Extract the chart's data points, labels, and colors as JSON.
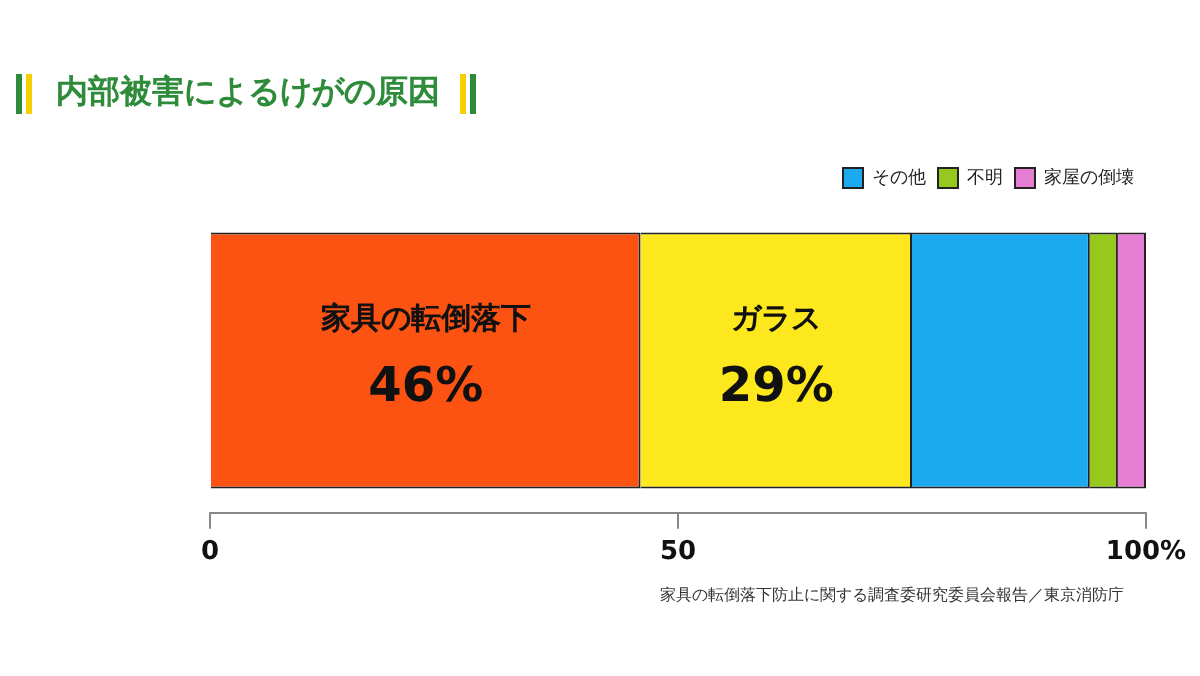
{
  "chart_data": {
    "type": "bar",
    "orientation": "horizontal",
    "stacked": true,
    "title": "内部被害によるけがの原因",
    "categories": [
      null
    ],
    "series": [
      {
        "name": "家具の転倒落下",
        "color": "#fc5212",
        "values": [
          46
        ],
        "value_labels": [
          "46%"
        ]
      },
      {
        "name": "ガラス",
        "color": "#fde71d",
        "values": [
          29
        ],
        "value_labels": [
          "29%"
        ]
      },
      {
        "name": "その他",
        "color": "#1ba9ef",
        "values": [
          19
        ]
      },
      {
        "name": "不明",
        "color": "#96c81e",
        "values": [
          3
        ]
      },
      {
        "name": "家屋の倒壊",
        "color": "#e57dd2",
        "values": [
          3
        ]
      }
    ],
    "xlim": [
      0,
      100
    ],
    "xticks": [
      0,
      50,
      {
        "value": 100,
        "label": "100%"
      }
    ],
    "grid": false,
    "legend": "top right",
    "annotations": [
      "家具の転倒落下防止に関する調査委研究委員会報告／東京消防庁"
    ]
  }
}
